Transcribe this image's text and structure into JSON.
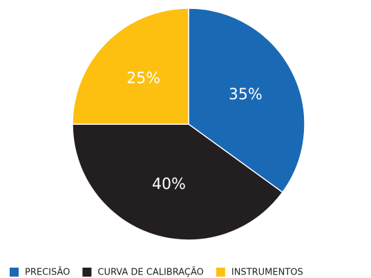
{
  "chart_data": {
    "type": "pie",
    "categories": [
      "PRECISÃO",
      "CURVA DE CALIBRAÇÃO",
      "INSTRUMENTOS"
    ],
    "values": [
      35,
      40,
      25
    ],
    "value_labels": [
      "35%",
      "40%",
      "25%"
    ],
    "colors": [
      "#1a69b5",
      "#231f20",
      "#fdc010"
    ],
    "label_colors": [
      "#ffffff",
      "#ffffff",
      "#231f20"
    ],
    "legend": "bottom"
  }
}
